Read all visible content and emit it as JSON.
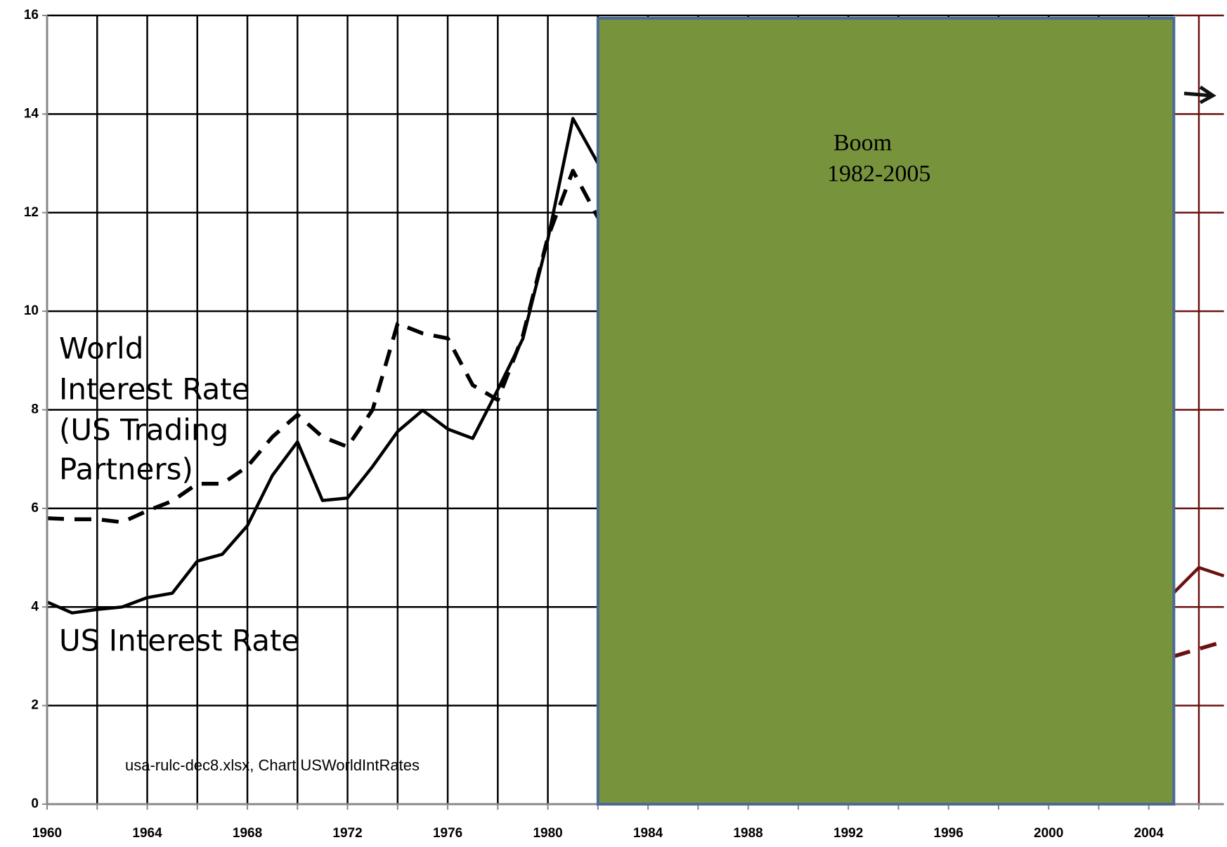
{
  "chart_data": {
    "type": "line",
    "x": [
      1960,
      1961,
      1962,
      1963,
      1964,
      1965,
      1966,
      1967,
      1968,
      1969,
      1970,
      1971,
      1972,
      1973,
      1974,
      1975,
      1976,
      1977,
      1978,
      1979,
      1980,
      1981,
      1982,
      1983,
      1984,
      1985,
      1986,
      1987,
      1988,
      1989,
      1990,
      1991,
      1992,
      1993,
      1994,
      1995,
      1996,
      1997,
      1998,
      1999,
      2000,
      2001,
      2002,
      2003,
      2004,
      2005,
      2006,
      2007
    ],
    "series": [
      {
        "name": "US Interest Rate",
        "color": "#000000",
        "dash": false,
        "values": [
          4.1,
          3.88,
          3.95,
          4.0,
          4.19,
          4.28,
          4.93,
          5.07,
          5.65,
          6.67,
          7.35,
          6.16,
          6.21,
          6.85,
          7.56,
          7.99,
          7.61,
          7.42,
          8.41,
          9.44,
          11.46,
          13.91,
          13.0,
          null,
          null,
          null,
          null,
          null,
          null,
          null,
          null,
          null,
          null,
          null,
          null,
          null,
          null,
          null,
          null,
          null,
          null,
          null,
          null,
          null,
          null,
          4.29,
          4.8,
          4.63
        ]
      },
      {
        "name": "World Interest Rate (US Trading Partners)",
        "label_lines": [
          "World",
          "Interest Rate",
          "(US Trading",
          "Partners)"
        ],
        "color": "#000000",
        "dash": true,
        "values": [
          5.8,
          5.78,
          5.78,
          5.72,
          5.95,
          6.15,
          6.5,
          6.5,
          6.85,
          7.45,
          7.9,
          7.45,
          7.25,
          8.0,
          9.75,
          9.55,
          9.45,
          8.5,
          8.2,
          9.5,
          11.5,
          12.85,
          11.9,
          null,
          null,
          null,
          null,
          null,
          null,
          null,
          null,
          null,
          null,
          null,
          null,
          null,
          null,
          null,
          null,
          null,
          null,
          null,
          null,
          null,
          null,
          3.0,
          3.15,
          3.3
        ]
      }
    ],
    "band": {
      "start": 1982,
      "end": 2005,
      "label_lines": [
        "Boom",
        "1982-2005"
      ],
      "color": "#77933c",
      "edge_color": "#4a6b96"
    },
    "post_band_color": "#6b1111",
    "note": "usa-rulc-dec8.xlsx, Chart USWorldIntRates",
    "xlim": [
      1960,
      2007
    ],
    "xticks": [
      1960,
      1964,
      1968,
      1972,
      1976,
      1980,
      1984,
      1988,
      1992,
      1996,
      2000,
      2004
    ],
    "xgrid": [
      1960,
      1962,
      1964,
      1966,
      1968,
      1970,
      1972,
      1974,
      1976,
      1978,
      1980,
      1982,
      1984,
      1986,
      1988,
      1990,
      1992,
      1994,
      1996,
      1998,
      2000,
      2002,
      2004,
      2006
    ],
    "ylim": [
      0,
      16
    ],
    "yticks": [
      0,
      2,
      4,
      6,
      8,
      10,
      12,
      14,
      16
    ],
    "grid": true
  }
}
